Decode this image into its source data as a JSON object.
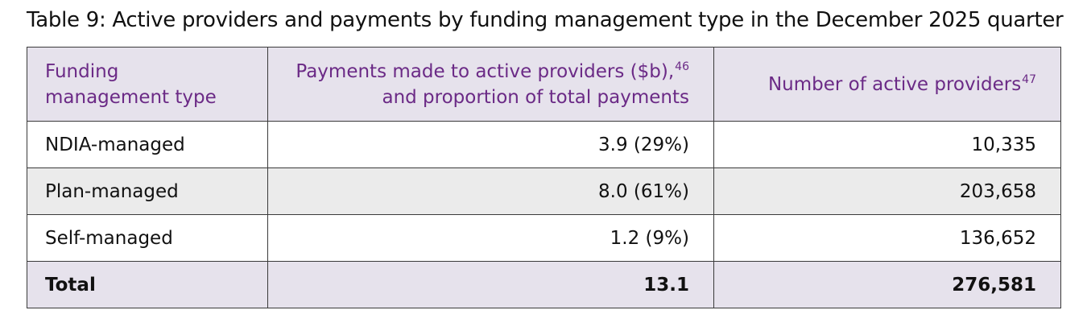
{
  "caption": "Table 9: Active providers and payments by funding management type in the December 2025 quarter",
  "header": {
    "col1_line1": "Funding",
    "col1_line2": "management type",
    "col2_line1": "Payments made to active providers ($b),",
    "col2_footnote": "46",
    "col2_line2": "and proportion of total payments",
    "col3_text": "Number of active providers",
    "col3_footnote": "47"
  },
  "rows": [
    {
      "type": "NDIA-managed",
      "payments": "3.9 (29%)",
      "providers": "10,335"
    },
    {
      "type": "Plan-managed",
      "payments": "8.0 (61%)",
      "providers": "203,658"
    },
    {
      "type": "Self-managed",
      "payments": "1.2 (9%)",
      "providers": "136,652"
    }
  ],
  "total": {
    "label": "Total",
    "payments": "13.1",
    "providers": "276,581"
  },
  "colors": {
    "header_text": "#6b2a86",
    "header_bg": "#e6e2ec",
    "alt_row_bg": "#ebebeb"
  }
}
